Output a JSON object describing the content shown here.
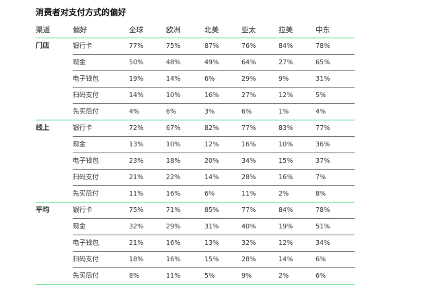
{
  "title": "消费者对支付方式的偏好",
  "headers": [
    "渠道",
    "偏好",
    "全球",
    "欧洲",
    "北美",
    "亚太",
    "拉美",
    "中东"
  ],
  "groups": [
    {
      "channel": "门店",
      "rows": [
        {
          "pref": "银行卡",
          "values": [
            "77%",
            "75%",
            "87%",
            "76%",
            "84%",
            "78%"
          ]
        },
        {
          "pref": "现金",
          "values": [
            "50%",
            "48%",
            "49%",
            "64%",
            "27%",
            "65%"
          ]
        },
        {
          "pref": "电子钱包",
          "values": [
            "19%",
            "14%",
            "6%",
            "29%",
            "9%",
            "31%"
          ]
        },
        {
          "pref": "扫码支付",
          "values": [
            "14%",
            "10%",
            "16%",
            "27%",
            "12%",
            "5%"
          ]
        },
        {
          "pref": "先买后付",
          "values": [
            "4%",
            "6%",
            "3%",
            "6%",
            "1%",
            "4%"
          ]
        }
      ]
    },
    {
      "channel": "线上",
      "rows": [
        {
          "pref": "银行卡",
          "values": [
            "72%",
            "67%",
            "82%",
            "77%",
            "83%",
            "77%"
          ]
        },
        {
          "pref": "现金",
          "values": [
            "13%",
            "10%",
            "12%",
            "16%",
            "10%",
            "36%"
          ]
        },
        {
          "pref": "电子钱包",
          "values": [
            "23%",
            "18%",
            "20%",
            "34%",
            "15%",
            "37%"
          ]
        },
        {
          "pref": "扫码支付",
          "values": [
            "21%",
            "22%",
            "14%",
            "28%",
            "16%",
            "7%"
          ]
        },
        {
          "pref": "先买后付",
          "values": [
            "11%",
            "16%",
            "6%",
            "11%",
            "2%",
            "8%"
          ]
        }
      ]
    },
    {
      "channel": "平均",
      "rows": [
        {
          "pref": "银行卡",
          "values": [
            "75%",
            "71%",
            "85%",
            "77%",
            "84%",
            "78%"
          ]
        },
        {
          "pref": "现金",
          "values": [
            "32%",
            "29%",
            "31%",
            "40%",
            "19%",
            "51%"
          ]
        },
        {
          "pref": "电子钱包",
          "values": [
            "21%",
            "16%",
            "13%",
            "32%",
            "12%",
            "34%"
          ]
        },
        {
          "pref": "扫码支付",
          "values": [
            "18%",
            "16%",
            "15%",
            "28%",
            "14%",
            "6%"
          ]
        },
        {
          "pref": "先买后付",
          "values": [
            "8%",
            "11%",
            "5%",
            "9%",
            "2%",
            "6%"
          ]
        }
      ]
    }
  ],
  "colors": {
    "accent_green": "#2fd06a",
    "channel_text": "#22b04a",
    "divider": "#6a6f78"
  }
}
